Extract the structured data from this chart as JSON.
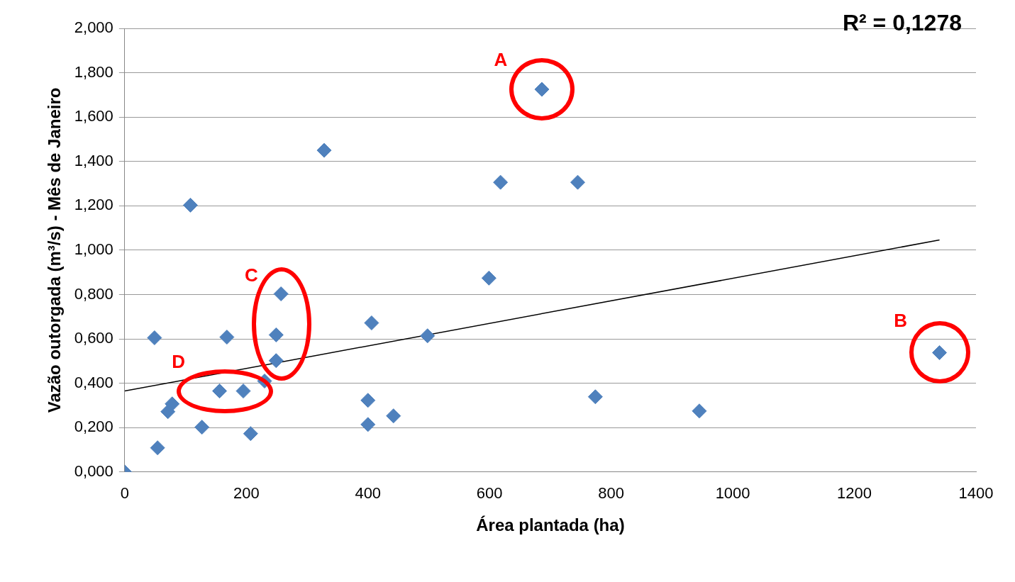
{
  "chart_data": {
    "type": "scatter",
    "xlabel": "Área plantada (ha)",
    "ylabel": "Vazão outorgada (m³/s) - Mês de Janeiro",
    "xlim": [
      0,
      1400
    ],
    "xticks": [
      0,
      200,
      400,
      600,
      800,
      1000,
      1200,
      1400
    ],
    "ylim": [
      0,
      2
    ],
    "yticks": [
      {
        "value": 0,
        "label": "0,000"
      },
      {
        "value": 0.2,
        "label": "0,200"
      },
      {
        "value": 0.4,
        "label": "0,400"
      },
      {
        "value": 0.6,
        "label": "0,600"
      },
      {
        "value": 0.8,
        "label": "0,800"
      },
      {
        "value": 1,
        "label": "1,000"
      },
      {
        "value": 1.2,
        "label": "1,200"
      },
      {
        "value": 1.4,
        "label": "1,400"
      },
      {
        "value": 1.6,
        "label": "1,600"
      },
      {
        "value": 1.8,
        "label": "1,800"
      },
      {
        "value": 2,
        "label": "2,000"
      }
    ],
    "grid": "y",
    "legend": false,
    "marker": "diamond",
    "series": [
      {
        "color": "#4f81bd",
        "x": [
          0,
          54,
          49,
          71,
          78,
          108,
          127,
          156,
          168,
          195,
          207,
          230,
          249,
          249,
          257,
          328,
          400,
          400,
          406,
          442,
          498,
          599,
          618,
          686,
          745,
          774,
          945,
          1340
        ],
        "values": [
          0,
          0.109,
          0.605,
          0.272,
          0.307,
          1.203,
          0.202,
          0.365,
          0.608,
          0.365,
          0.173,
          0.41,
          0.502,
          0.618,
          0.803,
          1.45,
          0.323,
          0.214,
          0.672,
          0.253,
          0.614,
          0.874,
          1.306,
          1.725,
          1.306,
          0.339,
          0.275,
          0.538
        ]
      },
      {
        "type": "line",
        "color": "#000000",
        "marker": "none",
        "x": [
          0,
          1340
        ],
        "values": [
          0.365,
          1.046
        ]
      }
    ],
    "annotations": [
      "R² = 0,1278",
      {
        "text": "A",
        "x": 686,
        "y": 1.725
      },
      {
        "text": "B",
        "x": 1340,
        "y": 0.538
      },
      {
        "text": "C",
        "x": 249,
        "y": 0.618
      },
      {
        "text": "D",
        "x": 156,
        "y": 0.365
      }
    ]
  }
}
